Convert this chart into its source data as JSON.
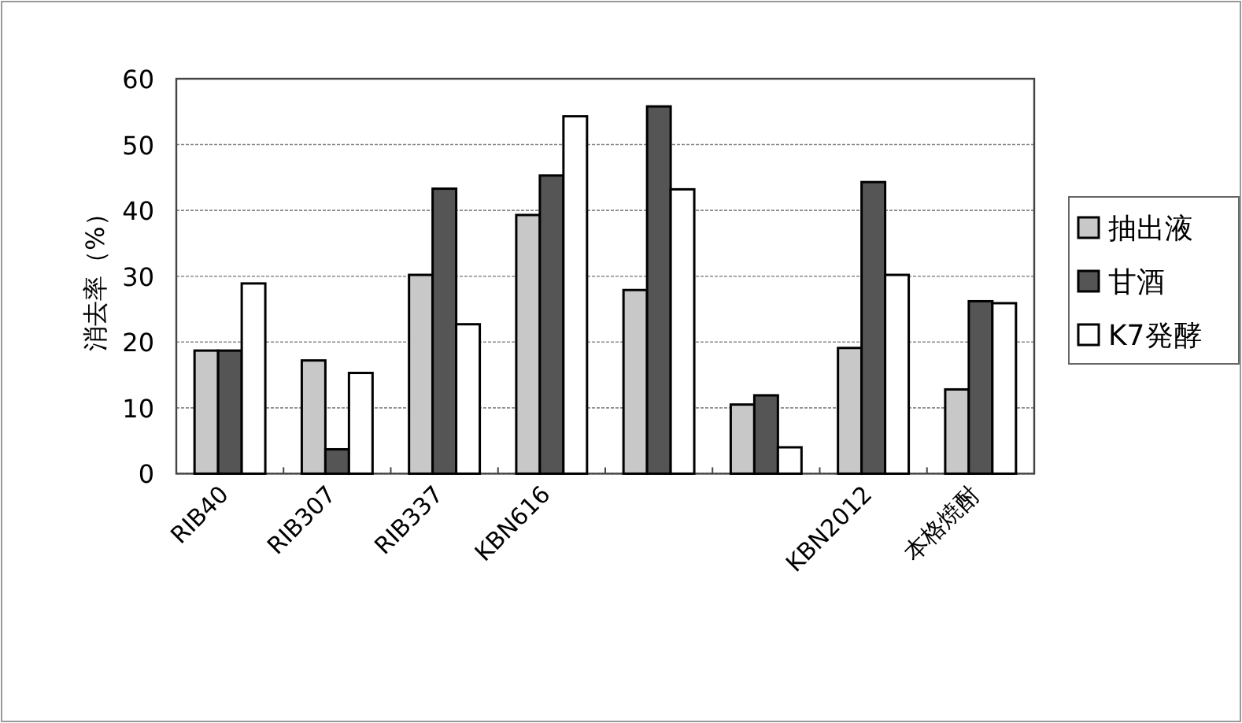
{
  "chart_data": {
    "type": "bar",
    "ylabel": "消去率（%）",
    "categories": [
      "RIB40",
      "RIB307",
      "RIB337",
      "KBN616",
      null,
      null,
      "KBN2012",
      "本格焼酎"
    ],
    "series": [
      {
        "name": "抽出液",
        "color": "#c8c8c8",
        "values": [
          18.7,
          17.2,
          30.2,
          39.3,
          27.9,
          10.5,
          19.1,
          12.8
        ]
      },
      {
        "name": "甘酒",
        "color": "#555555",
        "values": [
          18.7,
          3.7,
          43.3,
          45.3,
          55.8,
          11.9,
          44.3,
          26.2
        ]
      },
      {
        "name": "K7発酵",
        "color": "#ffffff",
        "values": [
          28.9,
          15.3,
          22.7,
          54.3,
          43.2,
          4.0,
          30.2,
          25.9
        ]
      }
    ],
    "ylim": [
      0,
      60
    ],
    "yticks": [
      0,
      10,
      20,
      30,
      40,
      50,
      60
    ],
    "grid": "y",
    "legend": "right"
  }
}
